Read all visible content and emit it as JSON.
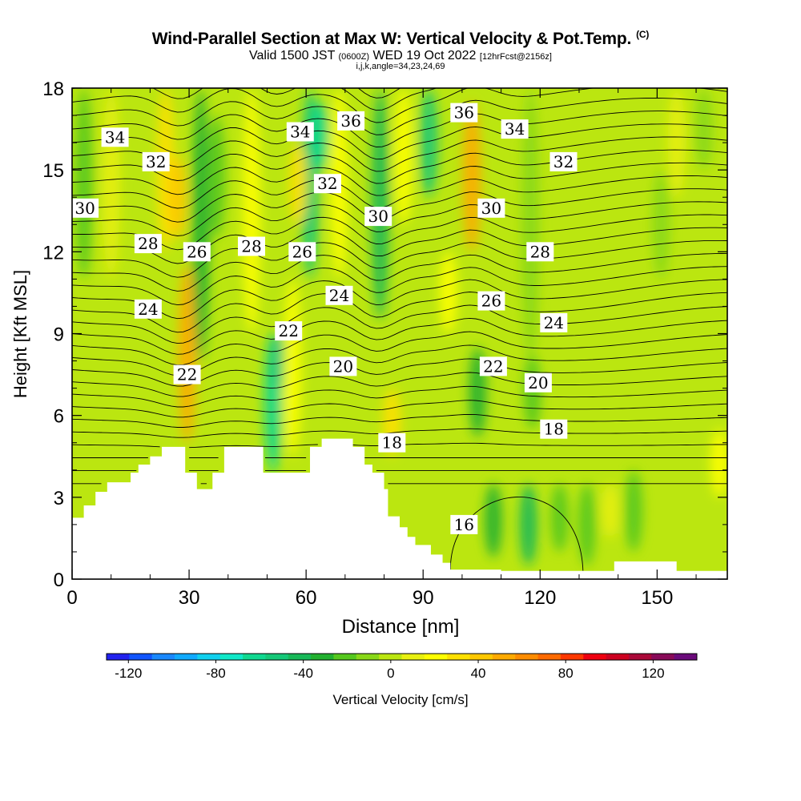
{
  "header": {
    "title": "Wind-Parallel Section at Max W: Vertical Velocity & Pot.Temp.",
    "copyright": "(C)",
    "valid_prefix": "Valid 1500 JST",
    "valid_z": "(0600Z)",
    "valid_date": "WED 19 Oct 2022",
    "forecast": "[12hrFcst@2156z]",
    "params": "i,j,k,angle=34,23,24,69"
  },
  "chart_data": {
    "type": "heatmap",
    "title": "Wind-Parallel Section at Max W: Vertical Velocity & Pot.Temp.",
    "xlabel": "Distance [nm]",
    "ylabel": "Height [Kft MSL]",
    "xlim": [
      0,
      168
    ],
    "ylim": [
      0,
      18
    ],
    "xticks": [
      0,
      30,
      60,
      90,
      120,
      150
    ],
    "yticks": [
      0,
      3,
      6,
      9,
      12,
      15,
      18
    ],
    "colorbar": {
      "label": "Vertical Velocity [cm/s]",
      "tick_labels": [
        "-120",
        "-80",
        "-40",
        "0",
        "40",
        "80",
        "120"
      ],
      "tick_values": [
        -120,
        -80,
        -40,
        0,
        40,
        80,
        120
      ],
      "range": [
        -130,
        140
      ],
      "colors": [
        "#2222ee",
        "#1155ff",
        "#1a88ff",
        "#10aaff",
        "#10d0ee",
        "#10e8c8",
        "#10d890",
        "#15c878",
        "#18b858",
        "#22b030",
        "#55c81e",
        "#88d818",
        "#bbe610",
        "#e8f010",
        "#ffff00",
        "#ffe000",
        "#ffc800",
        "#ffaa00",
        "#ff8c00",
        "#ff6a00",
        "#ff3800",
        "#ee0010",
        "#cc0020",
        "#aa0838",
        "#880a58",
        "#6a0a7a"
      ]
    },
    "theta_contour_labels": [
      {
        "text": "34",
        "x": 11,
        "y": 16.2
      },
      {
        "text": "32",
        "x": 21.5,
        "y": 15.3
      },
      {
        "text": "30",
        "x": 3.3,
        "y": 13.6
      },
      {
        "text": "28",
        "x": 19.5,
        "y": 12.3
      },
      {
        "text": "26",
        "x": 32,
        "y": 12
      },
      {
        "text": "28",
        "x": 46,
        "y": 12.2
      },
      {
        "text": "26",
        "x": 59,
        "y": 12
      },
      {
        "text": "24",
        "x": 19.5,
        "y": 9.9
      },
      {
        "text": "22",
        "x": 29.5,
        "y": 7.5
      },
      {
        "text": "34",
        "x": 58.5,
        "y": 16.4
      },
      {
        "text": "36",
        "x": 71.5,
        "y": 16.8
      },
      {
        "text": "32",
        "x": 65.5,
        "y": 14.5
      },
      {
        "text": "30",
        "x": 78.5,
        "y": 13.3
      },
      {
        "text": "24",
        "x": 68.5,
        "y": 10.4
      },
      {
        "text": "22",
        "x": 55.5,
        "y": 9.1
      },
      {
        "text": "20",
        "x": 69.5,
        "y": 7.8
      },
      {
        "text": "18",
        "x": 82,
        "y": 5
      },
      {
        "text": "36",
        "x": 100.5,
        "y": 17.1
      },
      {
        "text": "34",
        "x": 113.5,
        "y": 16.5
      },
      {
        "text": "32",
        "x": 126,
        "y": 15.3
      },
      {
        "text": "30",
        "x": 107.5,
        "y": 13.6
      },
      {
        "text": "28",
        "x": 120,
        "y": 12
      },
      {
        "text": "26",
        "x": 107.5,
        "y": 10.2
      },
      {
        "text": "24",
        "x": 123.5,
        "y": 9.4
      },
      {
        "text": "22",
        "x": 108,
        "y": 7.8
      },
      {
        "text": "20",
        "x": 119.5,
        "y": 7.2
      },
      {
        "text": "18",
        "x": 123.5,
        "y": 5.5
      },
      {
        "text": "16",
        "x": 100.5,
        "y": 2
      }
    ],
    "theta_contour_levels": [
      16,
      18,
      20,
      22,
      24,
      26,
      28,
      30,
      32,
      34,
      36
    ],
    "theta_contour_interval": 0.5,
    "terrain_kft": [
      [
        0,
        2.25
      ],
      [
        3,
        2.7
      ],
      [
        6,
        3.2
      ],
      [
        9,
        3.55
      ],
      [
        15,
        3.9
      ],
      [
        17,
        4.2
      ],
      [
        20,
        4.5
      ],
      [
        23,
        4.85
      ],
      [
        26,
        4.85
      ],
      [
        29,
        3.9
      ],
      [
        32,
        3.3
      ],
      [
        36,
        3.9
      ],
      [
        39,
        4.85
      ],
      [
        42,
        4.85
      ],
      [
        48,
        4.85
      ],
      [
        49,
        3.9
      ],
      [
        53,
        3.9
      ],
      [
        57,
        3.9
      ],
      [
        61,
        4.85
      ],
      [
        64,
        5.15
      ],
      [
        69,
        5.15
      ],
      [
        72,
        4.85
      ],
      [
        75,
        4.2
      ],
      [
        77,
        3.9
      ],
      [
        80,
        3.3
      ],
      [
        81,
        2.3
      ],
      [
        84,
        1.9
      ],
      [
        86,
        1.55
      ],
      [
        88,
        1.25
      ],
      [
        92,
        0.9
      ],
      [
        95,
        0.6
      ],
      [
        97,
        0.35
      ],
      [
        100,
        0.35
      ],
      [
        104,
        0.35
      ],
      [
        110,
        0.3
      ],
      [
        138,
        0.3
      ],
      [
        139,
        0.65
      ],
      [
        152,
        0.65
      ],
      [
        155,
        0.3
      ],
      [
        162,
        0.3
      ],
      [
        168,
        1.1
      ]
    ],
    "vertical_velocity_features": [
      {
        "x": 3,
        "y_range": [
          11,
          18
        ],
        "w": -25
      },
      {
        "x": 10,
        "y_range": [
          11,
          18
        ],
        "w": 10
      },
      {
        "x": 24,
        "y_range": [
          12,
          18
        ],
        "w": 30
      },
      {
        "x": 29.5,
        "y_range": [
          5,
          11.5
        ],
        "w": 55
      },
      {
        "x": 27,
        "y_range": [
          12.5,
          15.5
        ],
        "w": 40
      },
      {
        "x": 33,
        "y_range": [
          8,
          18
        ],
        "w": -35
      },
      {
        "x": 37,
        "y_range": [
          12.5,
          17
        ],
        "w": -20
      },
      {
        "x": 46,
        "y_range": [
          9,
          18
        ],
        "w": 25
      },
      {
        "x": 51.5,
        "y_range": [
          3.9,
          9
        ],
        "w": -60
      },
      {
        "x": 53,
        "y_range": [
          7,
          9
        ],
        "w": -50
      },
      {
        "x": 56.5,
        "y_range": [
          4.5,
          11
        ],
        "w": 25
      },
      {
        "x": 61,
        "y_range": [
          11,
          18
        ],
        "w": -50
      },
      {
        "x": 63.5,
        "y_range": [
          15,
          17.5
        ],
        "w": -60
      },
      {
        "x": 58,
        "y_range": [
          13,
          16
        ],
        "w": 30
      },
      {
        "x": 68.5,
        "y_range": [
          11,
          18
        ],
        "w": 25
      },
      {
        "x": 79,
        "y_range": [
          9.5,
          18
        ],
        "w": -45
      },
      {
        "x": 82,
        "y_range": [
          4.5,
          7
        ],
        "w": 30
      },
      {
        "x": 85,
        "y_range": [
          13,
          18
        ],
        "w": 20
      },
      {
        "x": 91.5,
        "y_range": [
          14,
          18
        ],
        "w": -50
      },
      {
        "x": 102.5,
        "y_range": [
          12,
          17.5
        ],
        "w": 50
      },
      {
        "x": 96.5,
        "y_range": [
          9,
          12
        ],
        "w": 25
      },
      {
        "x": 104,
        "y_range": [
          5.2,
          8.5
        ],
        "w": -30
      },
      {
        "x": 117.5,
        "y_range": [
          8,
          18
        ],
        "w": -10
      },
      {
        "x": 118,
        "y_range": [
          5.5,
          8.2
        ],
        "w": -20
      },
      {
        "x": 108,
        "y_range": [
          0.8,
          3.5
        ],
        "w": -30
      },
      {
        "x": 117,
        "y_range": [
          0.5,
          3.5
        ],
        "w": -40
      },
      {
        "x": 125,
        "y_range": [
          1,
          3.5
        ],
        "w": -25
      },
      {
        "x": 132,
        "y_range": [
          0.5,
          3.5
        ],
        "w": -20
      },
      {
        "x": 138,
        "y_range": [
          1.5,
          3.5
        ],
        "w": 15
      },
      {
        "x": 144,
        "y_range": [
          1,
          4
        ],
        "w": -25
      },
      {
        "x": 151,
        "y_range": [
          11,
          15
        ],
        "w": -15
      },
      {
        "x": 155,
        "y_range": [
          14,
          18
        ],
        "w": 15
      },
      {
        "x": 166,
        "y_range": [
          3,
          5.5
        ],
        "w": 25
      },
      {
        "x": 162,
        "y_range": [
          15,
          18
        ],
        "w": -15
      }
    ]
  }
}
